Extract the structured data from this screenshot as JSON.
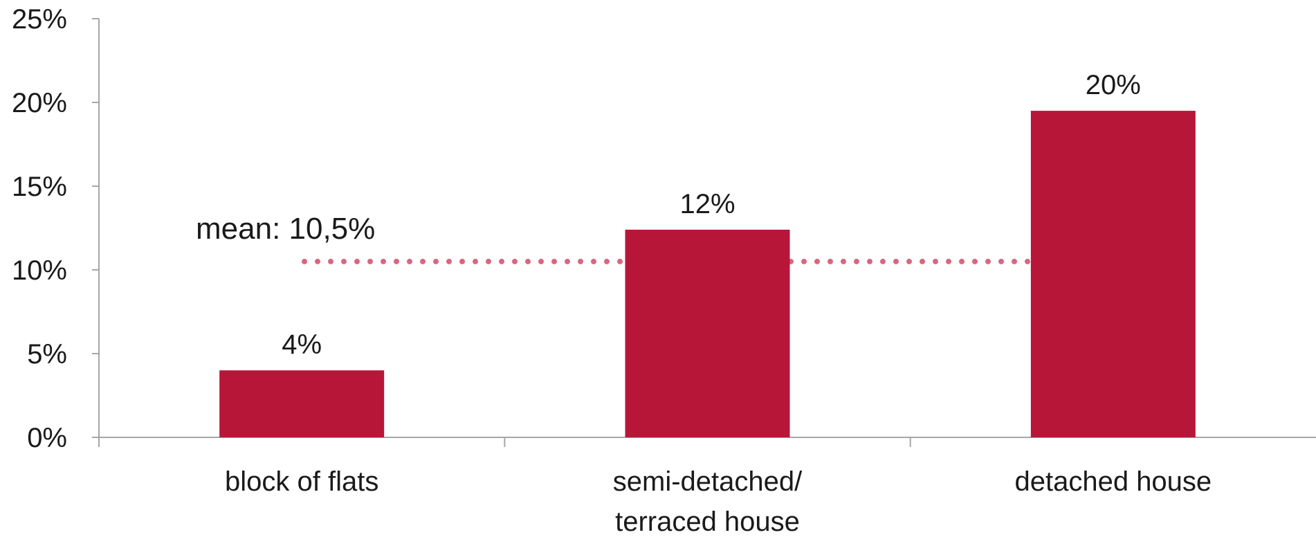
{
  "chart_data": {
    "type": "bar",
    "categories": [
      [
        "block of flats"
      ],
      [
        "semi-detached/",
        "terraced house"
      ],
      [
        "detached house"
      ]
    ],
    "values": [
      4,
      12.4,
      19.5
    ],
    "data_labels": [
      "4%",
      "12%",
      "20%"
    ],
    "ylim": [
      0,
      25
    ],
    "yticks": [
      0,
      5,
      10,
      15,
      20,
      25
    ],
    "ytick_labels": [
      "0%",
      "5%",
      "10%",
      "15%",
      "20%",
      "25%"
    ],
    "title": "",
    "xlabel": "",
    "ylabel": "",
    "grid": false,
    "reference_line": {
      "value": 10.5,
      "label": "mean: 10,5%",
      "style": "dotted"
    },
    "colors": {
      "bar": "#b71638",
      "mean_line": "#d9667f",
      "axis": "#a6a6a6"
    }
  }
}
